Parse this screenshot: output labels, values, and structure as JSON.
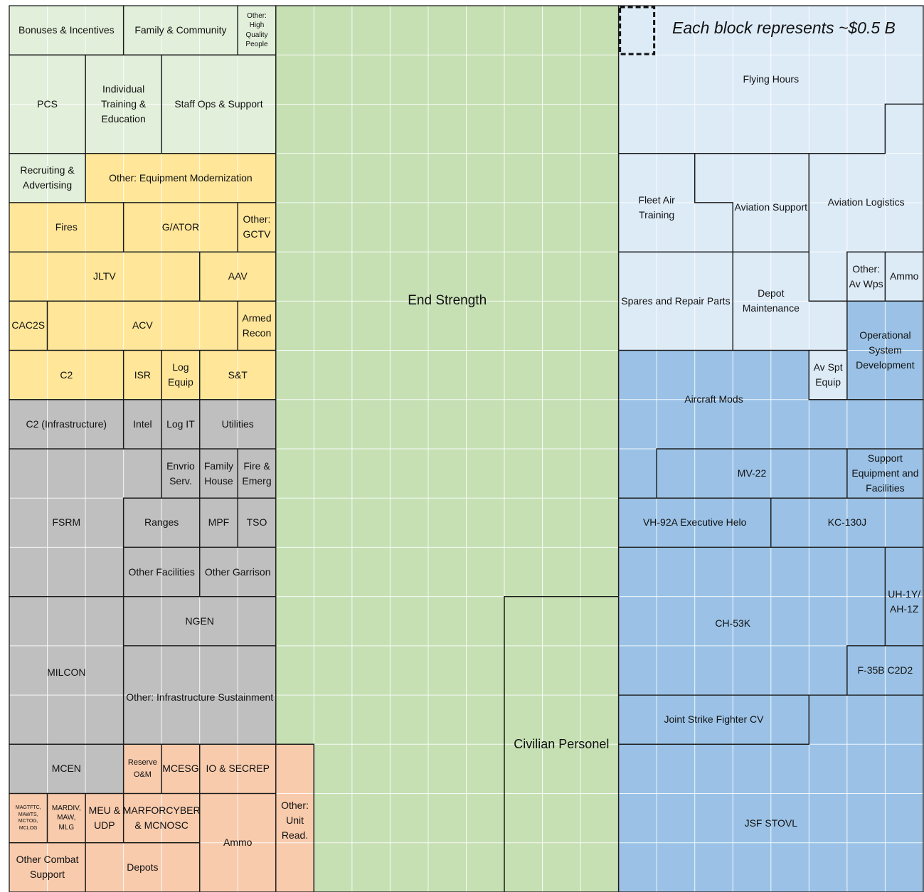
{
  "legend": "Each block represents ~$0.5 B",
  "blocks": [
    {
      "label": "Bonuses & Incentives",
      "color": "#e2efda"
    },
    {
      "label": "Family & Community",
      "color": "#e2efda"
    },
    {
      "label": "Other: High Quality People",
      "color": "#e2efda"
    },
    {
      "label": "PCS",
      "color": "#e2efda"
    },
    {
      "label": "Individual Training & Education",
      "color": "#e2efda"
    },
    {
      "label": "Staff Ops & Support",
      "color": "#e2efda"
    },
    {
      "label": "Recruiting & Advertising",
      "color": "#e2efda"
    },
    {
      "label": "Other: Equipment Modernization",
      "color": "#ffe699"
    },
    {
      "label": "Fires",
      "color": "#ffe699"
    },
    {
      "label": "G/ATOR",
      "color": "#ffe699"
    },
    {
      "label": "Other: GCTV",
      "color": "#ffe699"
    },
    {
      "label": "JLTV",
      "color": "#ffe699"
    },
    {
      "label": "AAV",
      "color": "#ffe699"
    },
    {
      "label": "CAC2S",
      "color": "#ffe699"
    },
    {
      "label": "ACV",
      "color": "#ffe699"
    },
    {
      "label": "Armed Recon",
      "color": "#ffe699"
    },
    {
      "label": "C2",
      "color": "#ffe699"
    },
    {
      "label": "ISR",
      "color": "#ffe699"
    },
    {
      "label": "Log Equip",
      "color": "#ffe699"
    },
    {
      "label": "S&T",
      "color": "#ffe699"
    },
    {
      "label": "C2 (Infrastructure)",
      "color": "#bfbfbf"
    },
    {
      "label": "Intel",
      "color": "#bfbfbf"
    },
    {
      "label": "Log IT",
      "color": "#bfbfbf"
    },
    {
      "label": "Utilities",
      "color": "#bfbfbf"
    },
    {
      "label": "Envrio Serv.",
      "color": "#bfbfbf"
    },
    {
      "label": "Family House",
      "color": "#bfbfbf"
    },
    {
      "label": "Fire & Emerg",
      "color": "#bfbfbf"
    },
    {
      "label": "FSRM",
      "color": "#bfbfbf"
    },
    {
      "label": "Ranges",
      "color": "#bfbfbf"
    },
    {
      "label": "MPF",
      "color": "#bfbfbf"
    },
    {
      "label": "TSO",
      "color": "#bfbfbf"
    },
    {
      "label": "Other Facilities",
      "color": "#bfbfbf"
    },
    {
      "label": "Other Garrison",
      "color": "#bfbfbf"
    },
    {
      "label": "NGEN",
      "color": "#bfbfbf"
    },
    {
      "label": "MILCON",
      "color": "#bfbfbf"
    },
    {
      "label": "Other: Infrastructure Sustainment",
      "color": "#bfbfbf"
    },
    {
      "label": "MCEN",
      "color": "#bfbfbf"
    },
    {
      "label": "Reserve O&M",
      "color": "#f8cbad"
    },
    {
      "label": "MCESG",
      "color": "#f8cbad"
    },
    {
      "label": "IO & SECREP",
      "color": "#f8cbad"
    },
    {
      "label": "Other: Unit Read.",
      "color": "#f8cbad"
    },
    {
      "label": "MAGTFTC, MAWTS, MCTOG, MCLOG",
      "color": "#f8cbad"
    },
    {
      "label": "MARDIV, MAW, MLG",
      "color": "#f8cbad"
    },
    {
      "label": "MEU & UDP",
      "color": "#f8cbad"
    },
    {
      "label": "MARFORCYBER & MCNOSC",
      "color": "#f8cbad"
    },
    {
      "label": "Ammo",
      "color": "#f8cbad"
    },
    {
      "label": "Other Combat Support",
      "color": "#f8cbad"
    },
    {
      "label": "Depots",
      "color": "#f8cbad"
    },
    {
      "label": "End Strength",
      "color": "#c6e0b4"
    },
    {
      "label": "Civilian Personel",
      "color": "#c6e0b4"
    },
    {
      "label": "Flying Hours",
      "color": "#ddebf7"
    },
    {
      "label": "Fleet Air Training",
      "color": "#ddebf7"
    },
    {
      "label": "Aviation Support",
      "color": "#ddebf7"
    },
    {
      "label": "Aviation Logistics",
      "color": "#ddebf7"
    },
    {
      "label": "Spares and Repair Parts",
      "color": "#ddebf7"
    },
    {
      "label": "Depot Maintenance",
      "color": "#ddebf7"
    },
    {
      "label": "Other: Av Wps",
      "color": "#ddebf7"
    },
    {
      "label": "Ammo",
      "color": "#ddebf7"
    },
    {
      "label": "Operational System Development",
      "color": "#9bc2e6"
    },
    {
      "label": "Av Spt Equip",
      "color": "#ddebf7"
    },
    {
      "label": "Aircraft Mods",
      "color": "#9bc2e6"
    },
    {
      "label": "MV-22",
      "color": "#9bc2e6"
    },
    {
      "label": "Support Equipment and Facilities",
      "color": "#9bc2e6"
    },
    {
      "label": "VH-92A Executive Helo",
      "color": "#9bc2e6"
    },
    {
      "label": "KC-130J",
      "color": "#9bc2e6"
    },
    {
      "label": "CH-53K",
      "color": "#9bc2e6"
    },
    {
      "label": "UH-1Y/ AH-1Z",
      "color": "#9bc2e6"
    },
    {
      "label": "F-35B C2D2",
      "color": "#9bc2e6"
    },
    {
      "label": "Joint Strike Fighter CV",
      "color": "#9bc2e6"
    },
    {
      "label": "JSF STOVL",
      "color": "#9bc2e6"
    }
  ]
}
